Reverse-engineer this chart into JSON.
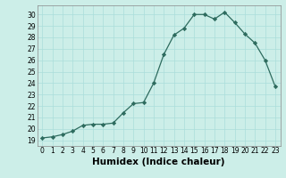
{
  "x": [
    0,
    1,
    2,
    3,
    4,
    5,
    6,
    7,
    8,
    9,
    10,
    11,
    12,
    13,
    14,
    15,
    16,
    17,
    18,
    19,
    20,
    21,
    22,
    23
  ],
  "y": [
    19.2,
    19.3,
    19.5,
    19.8,
    20.3,
    20.4,
    20.4,
    20.5,
    21.4,
    22.2,
    22.3,
    24.0,
    26.5,
    28.2,
    28.8,
    30.0,
    30.0,
    29.6,
    30.2,
    29.3,
    28.3,
    27.5,
    26.0,
    23.7
  ],
  "line_color": "#2d6b5e",
  "marker": "D",
  "marker_size": 2.2,
  "bg_color": "#cceee8",
  "grid_color": "#aaddda",
  "xlabel": "Humidex (Indice chaleur)",
  "ylim": [
    18.5,
    30.8
  ],
  "xlim": [
    -0.5,
    23.5
  ],
  "yticks": [
    19,
    20,
    21,
    22,
    23,
    24,
    25,
    26,
    27,
    28,
    29,
    30
  ],
  "xticks": [
    0,
    1,
    2,
    3,
    4,
    5,
    6,
    7,
    8,
    9,
    10,
    11,
    12,
    13,
    14,
    15,
    16,
    17,
    18,
    19,
    20,
    21,
    22,
    23
  ],
  "tick_fontsize": 5.5,
  "xlabel_fontsize": 7.5,
  "label_color": "#000000"
}
